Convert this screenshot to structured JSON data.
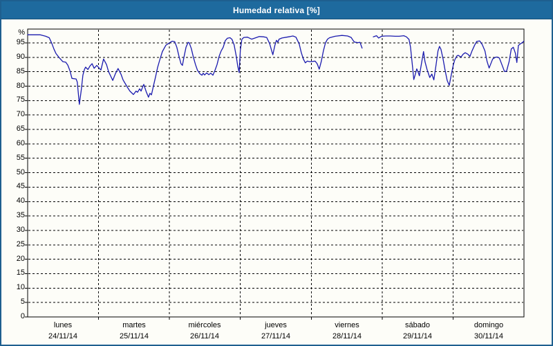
{
  "window": {
    "title": "Humedad relativa [%]"
  },
  "colors": {
    "titlebar": "#1e6a9e",
    "window_border": "#1e5f8f",
    "background": "#fdfdf8",
    "line": "#1a1aae",
    "grid": "#000000",
    "axis": "#000000",
    "title_text": "#ffffff",
    "label_text": "#000000"
  },
  "chart_data": {
    "type": "line",
    "title": "Humedad relativa [%]",
    "y_unit_label": "%",
    "ylim": [
      0,
      100
    ],
    "y_ticks": [
      0,
      5,
      10,
      15,
      20,
      25,
      30,
      35,
      40,
      45,
      50,
      55,
      60,
      65,
      70,
      75,
      80,
      85,
      90,
      95
    ],
    "grid": "dashed, horizontal every 5%, vertical at each day boundary",
    "legend_position": "none",
    "x_range_hours": [
      0,
      168
    ],
    "x_day_boundaries_hours": [
      24,
      48,
      72,
      96,
      120,
      144
    ],
    "days": [
      {
        "name": "lunes",
        "date": "24/11/14"
      },
      {
        "name": "martes",
        "date": "25/11/14"
      },
      {
        "name": "miércoles",
        "date": "26/11/14"
      },
      {
        "name": "jueves",
        "date": "27/11/14"
      },
      {
        "name": "viernes",
        "date": "28/11/14"
      },
      {
        "name": "sábado",
        "date": "29/11/14"
      },
      {
        "name": "domingo",
        "date": "30/11/14"
      }
    ],
    "data_gap_hours": [
      113.2,
      117.0
    ],
    "series": [
      {
        "name": "Humedad relativa",
        "unit": "%",
        "color": "#1a1aae",
        "segments": [
          [
            [
              0,
              97.8
            ],
            [
              4.2,
              97.8
            ],
            [
              6.1,
              97.3
            ],
            [
              7.3,
              96.8
            ],
            [
              8.2,
              94.8
            ],
            [
              8.9,
              92.9
            ],
            [
              9.6,
              91.3
            ],
            [
              10.5,
              90.1
            ],
            [
              11.2,
              89.3
            ],
            [
              11.9,
              88.5
            ],
            [
              12.9,
              88.3
            ],
            [
              13.6,
              87.3
            ],
            [
              14.3,
              85.4
            ],
            [
              15,
              82.7
            ],
            [
              16.4,
              82.5
            ],
            [
              16.8,
              81.4
            ],
            [
              17.5,
              73.7
            ],
            [
              18.2,
              79.1
            ],
            [
              18.7,
              83.8
            ],
            [
              19.2,
              85.8
            ],
            [
              19.6,
              86.6
            ],
            [
              20.4,
              85.8
            ],
            [
              21.1,
              87
            ],
            [
              21.8,
              87.8
            ],
            [
              22.5,
              86.2
            ],
            [
              23.4,
              87.2
            ],
            [
              24.1,
              86.4
            ],
            [
              24.8,
              85.6
            ],
            [
              25.7,
              89.4
            ],
            [
              26.7,
              87.5
            ],
            [
              27.4,
              85
            ],
            [
              28.1,
              83.5
            ],
            [
              28.8,
              82
            ],
            [
              29.7,
              84.3
            ],
            [
              30.6,
              86.1
            ],
            [
              31.6,
              84.1
            ],
            [
              32.3,
              82.2
            ],
            [
              33.2,
              80.6
            ],
            [
              33.9,
              79.4
            ],
            [
              34.6,
              78.3
            ],
            [
              35.8,
              77.1
            ],
            [
              36.7,
              78.3
            ],
            [
              37.2,
              77.9
            ],
            [
              37.9,
              79.1
            ],
            [
              38.4,
              78.3
            ],
            [
              39.1,
              80.2
            ],
            [
              39.3,
              80.6
            ],
            [
              39.8,
              79.1
            ],
            [
              40.2,
              77.9
            ],
            [
              40.9,
              76.2
            ],
            [
              41.4,
              77.5
            ],
            [
              41.9,
              77
            ],
            [
              42.6,
              80.2
            ],
            [
              43.3,
              83.3
            ],
            [
              44,
              86.5
            ],
            [
              44.7,
              89
            ],
            [
              45.6,
              92
            ],
            [
              46.8,
              94.2
            ],
            [
              48,
              95
            ],
            [
              48.9,
              95.6
            ],
            [
              49.8,
              95.4
            ],
            [
              50.5,
              93.5
            ],
            [
              51.2,
              90.5
            ],
            [
              51.9,
              87.8
            ],
            [
              52.4,
              87.2
            ],
            [
              52.9,
              90
            ],
            [
              53.6,
              93.5
            ],
            [
              54.3,
              95.2
            ],
            [
              54.7,
              95
            ],
            [
              55.4,
              93
            ],
            [
              56.1,
              90
            ],
            [
              56.8,
              87.5
            ],
            [
              57.5,
              85.5
            ],
            [
              58.3,
              84.3
            ],
            [
              59,
              83.8
            ],
            [
              59.4,
              84.5
            ],
            [
              59.9,
              83.9
            ],
            [
              60.6,
              84.6
            ],
            [
              61.3,
              84
            ],
            [
              62,
              84.5
            ],
            [
              62.7,
              83.8
            ],
            [
              63.4,
              85.5
            ],
            [
              64.1,
              87.5
            ],
            [
              64.8,
              90.3
            ],
            [
              65.5,
              92.2
            ],
            [
              66.2,
              93.5
            ],
            [
              66.9,
              95.8
            ],
            [
              67.6,
              96.6
            ],
            [
              68.5,
              96.8
            ],
            [
              69.2,
              96.2
            ],
            [
              69.9,
              94.3
            ],
            [
              70.6,
              90.5
            ],
            [
              71.1,
              87
            ],
            [
              71.6,
              84.7
            ],
            [
              72,
              92.5
            ],
            [
              72.5,
              96.3
            ],
            [
              73.2,
              96.9
            ],
            [
              74.4,
              97
            ],
            [
              75.8,
              96.3
            ],
            [
              77,
              96.7
            ],
            [
              78.4,
              97.2
            ],
            [
              79.8,
              97.1
            ],
            [
              80.9,
              96.9
            ],
            [
              81.9,
              94.8
            ],
            [
              82.6,
              92.3
            ],
            [
              83,
              90.9
            ],
            [
              83.7,
              94.2
            ],
            [
              84.2,
              95.9
            ],
            [
              84.7,
              95.3
            ],
            [
              85.1,
              96.3
            ],
            [
              86.1,
              96.7
            ],
            [
              87.7,
              97
            ],
            [
              88.9,
              97.2
            ],
            [
              89.8,
              97.4
            ],
            [
              90.8,
              97
            ],
            [
              91.9,
              94.7
            ],
            [
              92.6,
              91.7
            ],
            [
              93.3,
              89.5
            ],
            [
              94,
              88.1
            ],
            [
              94.7,
              88.7
            ],
            [
              95.4,
              88.5
            ],
            [
              96.6,
              88.6
            ],
            [
              97.3,
              88.7
            ],
            [
              98,
              87.8
            ],
            [
              98.7,
              85.9
            ],
            [
              99.4,
              88.6
            ],
            [
              100.1,
              92.2
            ],
            [
              100.8,
              95
            ],
            [
              101.5,
              96.3
            ],
            [
              102.2,
              96.8
            ],
            [
              104.1,
              97.3
            ],
            [
              106.4,
              97.6
            ],
            [
              108.3,
              97.4
            ],
            [
              109.5,
              96.9
            ],
            [
              110.2,
              95.8
            ],
            [
              110.6,
              95.3
            ],
            [
              111.8,
              95.1
            ],
            [
              112.5,
              95.2
            ],
            [
              113.2,
              93.2
            ]
          ],
          [
            [
              117,
              97.1
            ],
            [
              118.1,
              97.5
            ],
            [
              118.8,
              96.7
            ],
            [
              119.8,
              97.3
            ],
            [
              121.2,
              97.4
            ],
            [
              122.8,
              97.4
            ],
            [
              124.4,
              97.3
            ],
            [
              125.8,
              97.3
            ],
            [
              127.3,
              97.5
            ],
            [
              128.2,
              97.1
            ],
            [
              129.1,
              96.2
            ],
            [
              129.6,
              93.5
            ],
            [
              130,
              89.5
            ],
            [
              130.3,
              86.5
            ],
            [
              130.7,
              82.3
            ],
            [
              131.2,
              84
            ],
            [
              131.7,
              86
            ],
            [
              132.2,
              84.8
            ],
            [
              132.6,
              83.6
            ],
            [
              133.3,
              87.8
            ],
            [
              134,
              92
            ],
            [
              134.5,
              88.5
            ],
            [
              135.2,
              85.8
            ],
            [
              136.1,
              83
            ],
            [
              136.8,
              84.2
            ],
            [
              137.5,
              82.2
            ],
            [
              138.2,
              87
            ],
            [
              138.9,
              92.2
            ],
            [
              139.4,
              93.8
            ],
            [
              139.9,
              92.8
            ],
            [
              140.6,
              89.5
            ],
            [
              141.3,
              85.5
            ],
            [
              142,
              82
            ],
            [
              142.7,
              80.3
            ],
            [
              143.4,
              84
            ],
            [
              144.1,
              87.5
            ],
            [
              144.6,
              89.2
            ],
            [
              145.3,
              90.5
            ],
            [
              145.7,
              90.7
            ],
            [
              146.7,
              90.1
            ],
            [
              147.4,
              91.1
            ],
            [
              148.1,
              91.6
            ],
            [
              149,
              91.1
            ],
            [
              149.7,
              90.3
            ],
            [
              150.4,
              92.2
            ],
            [
              151.3,
              94.2
            ],
            [
              152,
              95.5
            ],
            [
              153,
              95.7
            ],
            [
              153.9,
              94.4
            ],
            [
              154.8,
              92.2
            ],
            [
              155.5,
              88.6
            ],
            [
              156.2,
              86.3
            ],
            [
              157.4,
              89.4
            ],
            [
              158.3,
              90
            ],
            [
              159,
              90.1
            ],
            [
              159.7,
              89.7
            ],
            [
              160.7,
              87
            ],
            [
              161.4,
              85.1
            ],
            [
              162.1,
              85.2
            ],
            [
              163,
              88.6
            ],
            [
              163.7,
              92.9
            ],
            [
              164.4,
              93.5
            ],
            [
              165.1,
              91.4
            ],
            [
              165.6,
              88.2
            ],
            [
              166.1,
              94.1
            ],
            [
              166.8,
              94.7
            ],
            [
              167.7,
              95.3
            ],
            [
              167.9,
              95.6
            ]
          ]
        ]
      }
    ]
  }
}
